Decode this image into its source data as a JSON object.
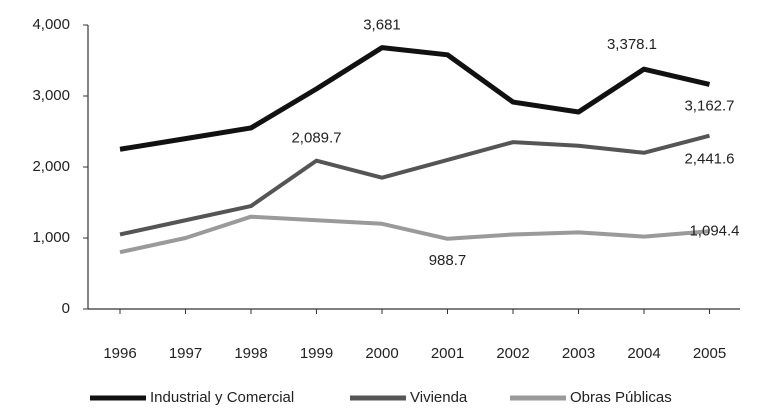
{
  "chart_data": {
    "type": "line",
    "categories": [
      "1996",
      "1997",
      "1998",
      "1999",
      "2000",
      "2001",
      "2002",
      "2003",
      "2004",
      "2005"
    ],
    "series": [
      {
        "name": "Industrial y Comercial",
        "color": "#111111",
        "values": [
          2250,
          2400,
          2550,
          3100,
          3681,
          3580,
          2915,
          2775,
          3378.1,
          3162.7
        ],
        "value_labels": [
          null,
          null,
          null,
          null,
          "3,681",
          null,
          null,
          null,
          "3,378.1",
          "3,162.7"
        ]
      },
      {
        "name": "Vivienda",
        "color": "#555555",
        "values": [
          1050,
          1250,
          1450,
          2089.7,
          1850,
          2100,
          2350,
          2300,
          2200,
          2441.6
        ],
        "value_labels": [
          null,
          null,
          null,
          "2,089.7",
          null,
          null,
          null,
          null,
          null,
          "2,441.6"
        ]
      },
      {
        "name": "Obras Públicas",
        "color": "#9a9a9a",
        "values": [
          800,
          1000,
          1300,
          1250,
          1200,
          988.7,
          1050,
          1080,
          1020,
          1094.4
        ],
        "value_labels": [
          null,
          null,
          null,
          null,
          null,
          "988.7",
          null,
          null,
          null,
          "1,094.4"
        ]
      }
    ],
    "ylim": [
      0,
      4000
    ],
    "yticks": [
      0,
      {
        "value": 1000,
        "label": "1,000"
      },
      {
        "value": 2000,
        "label": "2,000"
      },
      {
        "value": 3000,
        "label": "3,000"
      },
      {
        "value": 4000,
        "label": "4,000"
      }
    ],
    "grid": false,
    "legend": "bottom"
  }
}
